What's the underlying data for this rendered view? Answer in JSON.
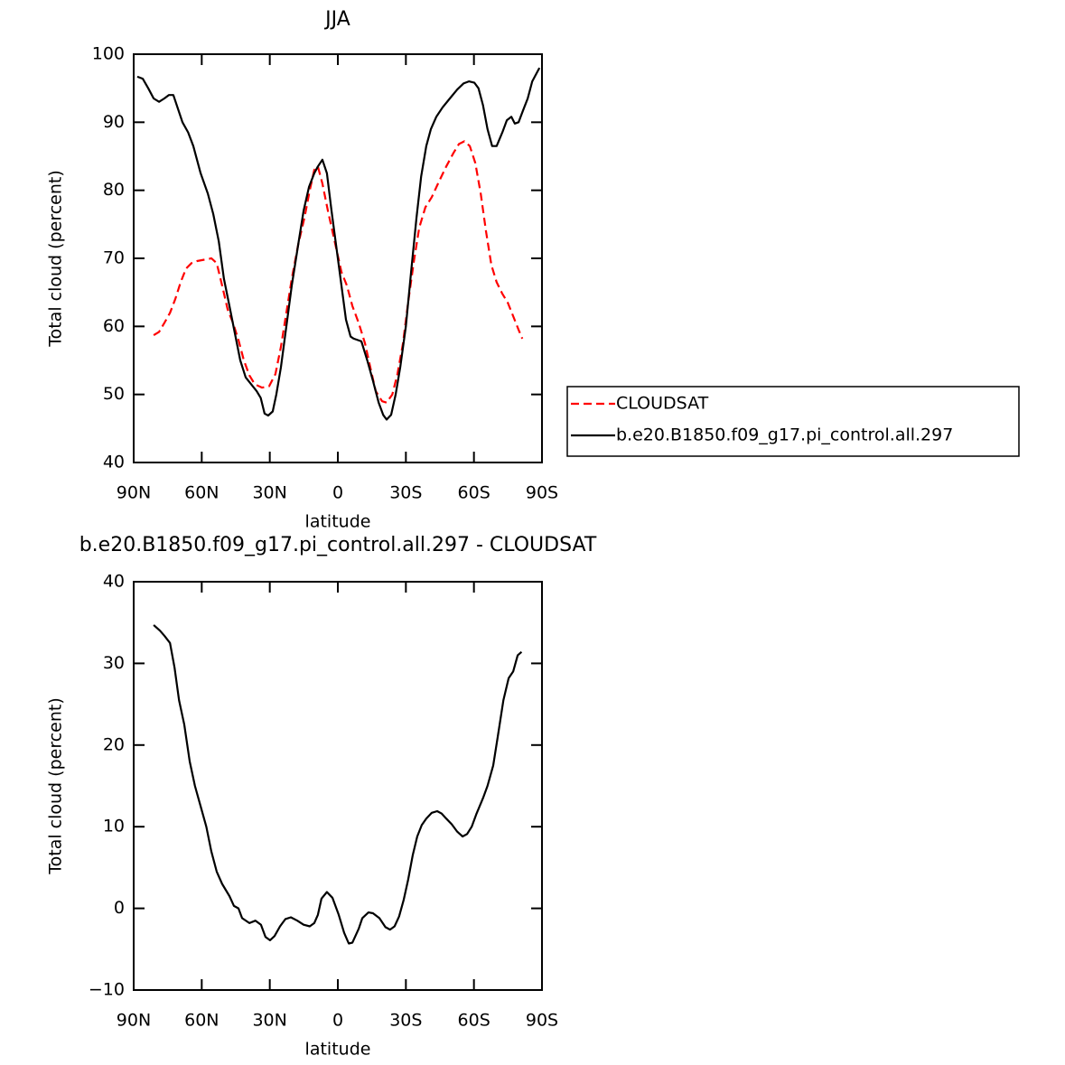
{
  "chart_data": [
    {
      "type": "line",
      "title": "JJA",
      "xlabel": "latitude",
      "ylabel": "Total cloud (percent)",
      "xlim": [
        90,
        -90
      ],
      "xticks": [
        {
          "value": 90,
          "label": "90N"
        },
        {
          "value": 60,
          "label": "60N"
        },
        {
          "value": 30,
          "label": "30N"
        },
        0,
        {
          "value": -30,
          "label": "30S"
        },
        {
          "value": -60,
          "label": "60S"
        },
        {
          "value": -90,
          "label": "90S"
        }
      ],
      "ylim": [
        40,
        100
      ],
      "yticks": [
        40,
        50,
        60,
        70,
        80,
        90,
        100
      ],
      "legend": "right",
      "series": [
        {
          "name": "CLOUDSAT",
          "color": "#ff0000",
          "linestyle": "dashed",
          "x": [
            81.2,
            78.8,
            76.5,
            74,
            71.7,
            69.3,
            66.9,
            64.5,
            62.1,
            58.9,
            55.7,
            53.4,
            51,
            48.6,
            46.2,
            43.8,
            41.4,
            39,
            36.6,
            33.4,
            30.3,
            27.5,
            25.1,
            22.7,
            20.3,
            17.5,
            14.7,
            12.4,
            10.4,
            8.8,
            6.8,
            4.4,
            2.4,
            0.4,
            -1.6,
            -4,
            -6.4,
            -9.2,
            -12,
            -14.3,
            -16.7,
            -19.5,
            -21.5,
            -24,
            -26.3,
            -28.7,
            -31,
            -33.5,
            -35.9,
            -38.6,
            -41.4,
            -44.6,
            -47.8,
            -51,
            -53.4,
            -55.8,
            -58.2,
            -60.6,
            -63,
            -65.3,
            -67.7,
            -70,
            -72.5,
            -74.9,
            -77.3,
            -79.7,
            -81.3
          ],
          "values": [
            58.7,
            59.2,
            60.5,
            62,
            64,
            66.5,
            68.5,
            69.3,
            69.6,
            69.8,
            70,
            69.3,
            66,
            62.5,
            60.5,
            58,
            55,
            52.8,
            51.5,
            51,
            51.2,
            53,
            57,
            62,
            67,
            72,
            76,
            80,
            83,
            83.5,
            81,
            77,
            74,
            71,
            68,
            66,
            63,
            60.5,
            57.5,
            54,
            50.5,
            49,
            48.8,
            50,
            53,
            57.5,
            63.5,
            69.5,
            74.5,
            77.5,
            79,
            81.3,
            83.5,
            85.5,
            86.8,
            87.2,
            86.5,
            84,
            79.5,
            74,
            69,
            66.5,
            64.8,
            63.5,
            61.5,
            59.5,
            58.2
          ]
        },
        {
          "name": "b.e20.B1850.f09_g17.pi_control.all.297",
          "color": "#000000",
          "linestyle": "solid",
          "x": [
            88.4,
            86,
            83.6,
            81.2,
            78.8,
            76.5,
            74.5,
            72.5,
            70,
            68.5,
            66,
            63.7,
            60.5,
            57.3,
            54.9,
            52.5,
            50.2,
            47.8,
            45.4,
            43,
            40.6,
            38.2,
            35.8,
            34,
            32.3,
            30.7,
            28.7,
            27.1,
            25.1,
            22.7,
            20.3,
            17.5,
            15.1,
            12.7,
            10.4,
            8.8,
            6.8,
            4.8,
            2.8,
            0.8,
            -1.6,
            -3.6,
            -5.6,
            -7,
            -10.4,
            -13,
            -15.5,
            -18,
            -20,
            -21.5,
            -23.5,
            -25.5,
            -27.5,
            -30,
            -32.3,
            -34.7,
            -36.7,
            -39,
            -41,
            -43.4,
            -46.2,
            -49.4,
            -52.6,
            -55.4,
            -57.8,
            -60.2,
            -62,
            -64,
            -66,
            -68,
            -70,
            -72.5,
            -74.5,
            -76.5,
            -78,
            -79.7,
            -81.7,
            -83.7,
            -85.7,
            -88.9
          ],
          "values": [
            96.7,
            96.4,
            95,
            93.5,
            93,
            93.5,
            94,
            94,
            91.5,
            90,
            88.5,
            86.5,
            82.5,
            79.5,
            76.5,
            72.5,
            67,
            63,
            59,
            55,
            52.5,
            51.5,
            50.5,
            49.5,
            47.2,
            46.9,
            47.5,
            50,
            54,
            60,
            66,
            72,
            77,
            80.5,
            82.5,
            83.5,
            84.5,
            82.5,
            77,
            72,
            66,
            61,
            58.5,
            58.2,
            57.8,
            55,
            52,
            48.8,
            47,
            46.3,
            47,
            50,
            54,
            60,
            68,
            76,
            82,
            86.5,
            89,
            90.8,
            92.2,
            93.5,
            94.8,
            95.7,
            96,
            95.8,
            95,
            92.5,
            89,
            86.5,
            86.5,
            88.5,
            90.3,
            90.8,
            89.8,
            90,
            91.8,
            93.5,
            96,
            98
          ]
        }
      ]
    },
    {
      "type": "line",
      "title": "b.e20.B1850.f09_g17.pi_control.all.297 - CLOUDSAT",
      "xlabel": "latitude",
      "ylabel": "Total cloud (percent)",
      "xlim": [
        90,
        -90
      ],
      "xticks": [
        {
          "value": 90,
          "label": "90N"
        },
        {
          "value": 60,
          "label": "60N"
        },
        {
          "value": 30,
          "label": "30N"
        },
        0,
        {
          "value": -30,
          "label": "30S"
        },
        {
          "value": -60,
          "label": "60S"
        },
        {
          "value": -90,
          "label": "90S"
        }
      ],
      "ylim": [
        -10,
        40
      ],
      "yticks": [
        {
          "value": -10,
          "label": "−10"
        },
        0,
        10,
        20,
        30,
        40
      ],
      "series": [
        {
          "color": "#000000",
          "linestyle": "solid",
          "x": [
            81.2,
            78.4,
            76.5,
            74,
            72,
            70,
            67.7,
            65.3,
            63,
            60.5,
            58,
            55.8,
            53.4,
            51,
            47.8,
            45.8,
            43.8,
            42.2,
            39,
            36.3,
            33.9,
            31.9,
            29.9,
            27.9,
            25.5,
            23.1,
            20.7,
            17.9,
            15.1,
            12.4,
            10.4,
            8.8,
            7.2,
            4.8,
            2.4,
            -0.4,
            -2.8,
            -4.8,
            -6.4,
            -9.2,
            -10.8,
            -13.5,
            -15.5,
            -18.3,
            -21,
            -23,
            -25,
            -27,
            -29,
            -31,
            -33,
            -35,
            -37,
            -39,
            -41.4,
            -43.8,
            -45.8,
            -47.8,
            -50.2,
            -52.6,
            -55,
            -57,
            -59,
            -61,
            -64,
            -66,
            -68.5,
            -70.5,
            -73,
            -75.3,
            -77.3,
            -79.3,
            -81
          ],
          "values": [
            34.7,
            34,
            33.4,
            32.5,
            29.5,
            25.5,
            22.5,
            18,
            15,
            12.5,
            10,
            7,
            4.5,
            3,
            1.5,
            0.3,
            0,
            -1.2,
            -1.8,
            -1.5,
            -2,
            -3.5,
            -3.9,
            -3.4,
            -2.2,
            -1.3,
            -1.1,
            -1.5,
            -2,
            -2.2,
            -1.8,
            -0.8,
            1.2,
            2,
            1.3,
            -0.8,
            -3,
            -4.3,
            -4.2,
            -2.5,
            -1.2,
            -0.5,
            -0.6,
            -1.2,
            -2.3,
            -2.6,
            -2.2,
            -1,
            1,
            3.5,
            6.5,
            8.8,
            10.2,
            11,
            11.7,
            11.9,
            11.6,
            11,
            10.3,
            9.4,
            8.8,
            9.1,
            10,
            11.5,
            13.5,
            15,
            17.5,
            21,
            25.5,
            28.2,
            29,
            31,
            31.4
          ]
        }
      ]
    }
  ]
}
